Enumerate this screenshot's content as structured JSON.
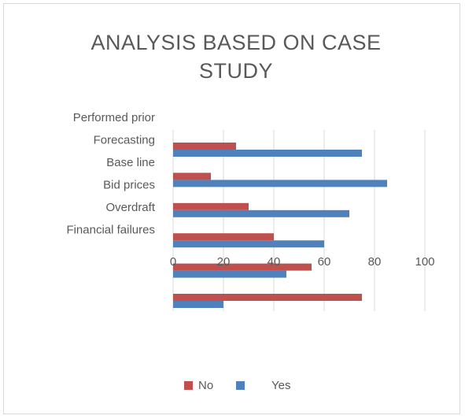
{
  "chart_data": {
    "type": "bar",
    "orientation": "horizontal",
    "title": "ANALYSIS BASED ON CASE STUDY",
    "categories": [
      "Performed prior",
      "Forecasting",
      "Base line",
      "Bid prices",
      "Overdraft",
      "Financial failures"
    ],
    "series": [
      {
        "name": "No",
        "color": "#c0504d",
        "values": [
          25,
          15,
          30,
          40,
          55,
          75
        ]
      },
      {
        "name": "Yes",
        "color": "#4f81bd",
        "values": [
          75,
          85,
          70,
          60,
          45,
          20
        ]
      }
    ],
    "xlim": [
      0,
      100
    ],
    "xticks": [
      0,
      20,
      40,
      60,
      80,
      100
    ],
    "grid": true,
    "legend": "bottom"
  }
}
